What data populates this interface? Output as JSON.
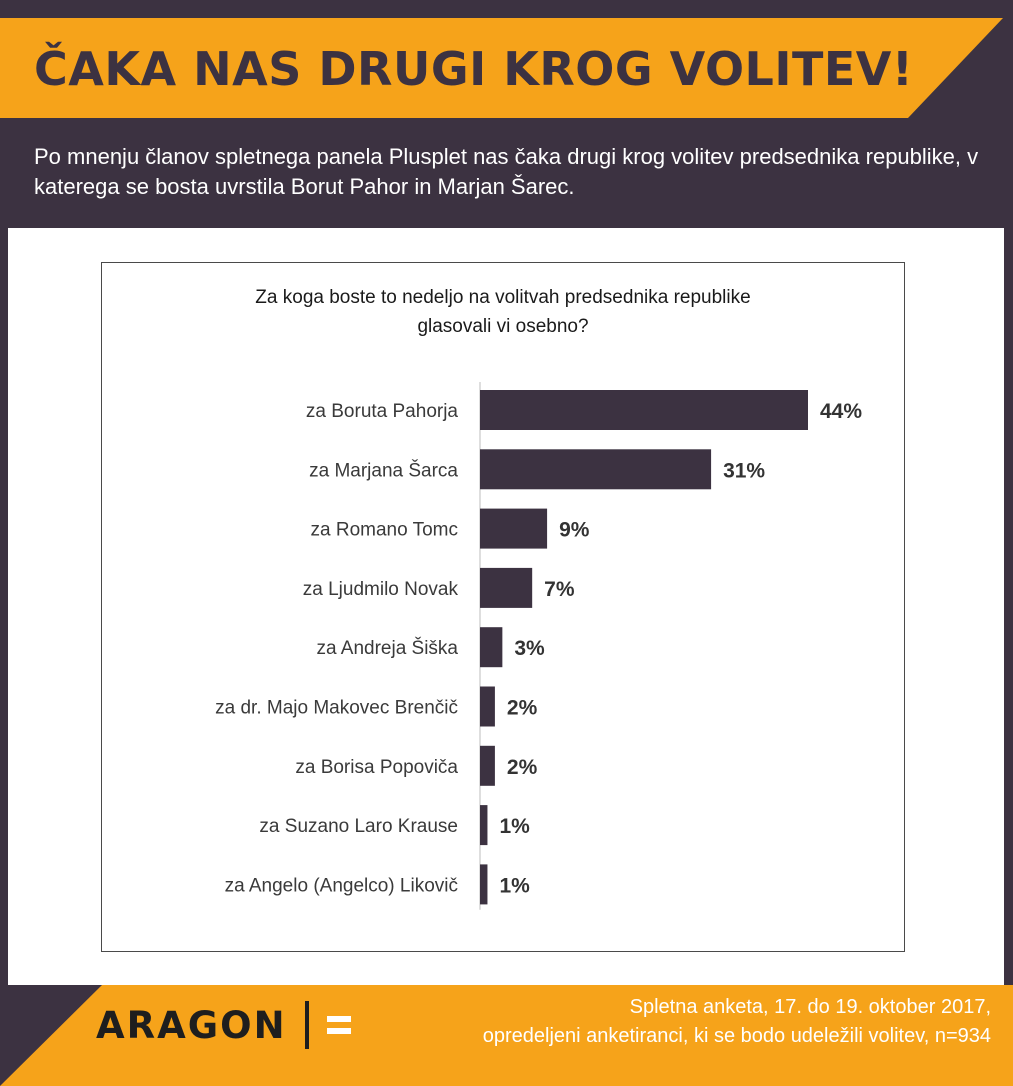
{
  "header": {
    "title": "ČAKA NAS DRUGI KROG VOLITEV!",
    "subtitle": "Po mnenju članov spletnega panela Plusplet nas čaka drugi krog volitev predsednika republike, v katerega se bosta uvrstila Borut Pahor in Marjan Šarec."
  },
  "colors": {
    "accent": "#f6a31a",
    "dark": "#3c3241",
    "bar": "#3c3241"
  },
  "chart_data": {
    "type": "bar",
    "orientation": "horizontal",
    "title": "Za koga boste to nedeljo na volitvah predsednika republike glasovali vi osebno?",
    "title_lines": [
      "Za koga boste to nedeljo na volitvah predsednika republike",
      "glasovali vi osebno?"
    ],
    "categories": [
      "za Boruta Pahorja",
      "za Marjana Šarca",
      "za Romano Tomc",
      "za Ljudmilo Novak",
      "za Andreja Šiška",
      "za dr. Majo Makovec Brenčič",
      "za Borisa Popoviča",
      "za Suzano Laro Krause",
      "za Angelo (Angelco) Likovič"
    ],
    "values": [
      44,
      31,
      9,
      7,
      3,
      2,
      2,
      1,
      1
    ],
    "value_labels": [
      "44%",
      "31%",
      "9%",
      "7%",
      "3%",
      "2%",
      "2%",
      "1%",
      "1%"
    ],
    "unit": "%",
    "xlim": [
      0,
      44
    ],
    "grid": false,
    "legend": "none"
  },
  "footer": {
    "logo_text": "ARAGON",
    "source_lines": [
      "Spletna anketa, 17. do 19. oktober 2017,",
      "opredeljeni anketiranci, ki se bodo udeležili volitev, n=934"
    ]
  }
}
